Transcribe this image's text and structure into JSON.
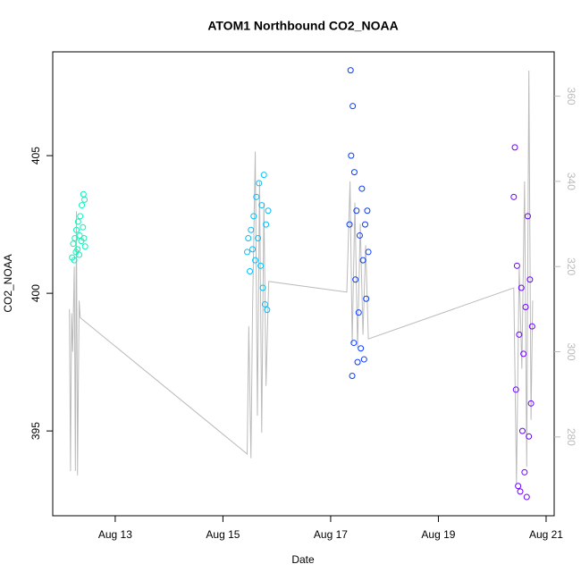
{
  "chart_data": {
    "type": "scatter",
    "title": "ATOM1 Northbound CO2_NOAA",
    "x_label": "Date",
    "y_label": "CO2_NOAA",
    "xlim": [
      11.84,
      21.15
    ],
    "xticks": [
      {
        "value": 13,
        "label": "Aug 13"
      },
      {
        "value": 15,
        "label": "Aug 15"
      },
      {
        "value": 17,
        "label": "Aug 17"
      },
      {
        "value": 19,
        "label": "Aug 19"
      },
      {
        "value": 21,
        "label": "Aug 21"
      }
    ],
    "ylim": [
      391.92,
      408.77
    ],
    "yticks": [
      395,
      400,
      405
    ],
    "y2lim": [
      261.5,
      370.4
    ],
    "y2ticks": [
      280,
      300,
      320,
      340,
      360
    ],
    "series": [
      {
        "color": "#10f0b8",
        "x": [
          12.2,
          12.22,
          12.24,
          12.25,
          12.27,
          12.28,
          12.3,
          12.31,
          12.33,
          12.34,
          12.35,
          12.37,
          12.38,
          12.4,
          12.41,
          12.42,
          12.43,
          12.44
        ],
        "values": [
          401.3,
          401.8,
          401.2,
          402.0,
          401.5,
          402.3,
          401.6,
          402.6,
          401.4,
          402.1,
          402.8,
          401.9,
          403.2,
          402.4,
          403.6,
          402.0,
          403.4,
          401.7
        ]
      },
      {
        "color": "#00bfff",
        "x": [
          15.45,
          15.47,
          15.5,
          15.52,
          15.55,
          15.57,
          15.6,
          15.62,
          15.65,
          15.67,
          15.7,
          15.72,
          15.74,
          15.76,
          15.78,
          15.8,
          15.82,
          15.84
        ],
        "values": [
          401.5,
          402.0,
          400.8,
          402.3,
          401.6,
          402.8,
          401.2,
          403.5,
          402.0,
          404.0,
          401.0,
          403.2,
          400.2,
          404.3,
          399.6,
          402.5,
          399.4,
          403.0
        ]
      },
      {
        "color": "#0a3cff",
        "x": [
          17.35,
          17.37,
          17.38,
          17.4,
          17.41,
          17.43,
          17.44,
          17.46,
          17.48,
          17.5,
          17.52,
          17.54,
          17.56,
          17.58,
          17.6,
          17.62,
          17.64,
          17.66,
          17.68,
          17.7
        ],
        "values": [
          402.5,
          408.1,
          405.0,
          397.0,
          406.8,
          398.2,
          404.4,
          400.5,
          403.0,
          397.5,
          399.3,
          402.1,
          398.0,
          403.8,
          401.2,
          397.6,
          402.5,
          399.8,
          403.0,
          401.5
        ]
      },
      {
        "color": "#6a00ff",
        "x": [
          20.4,
          20.42,
          20.44,
          20.46,
          20.48,
          20.5,
          20.52,
          20.54,
          20.56,
          20.58,
          20.6,
          20.62,
          20.64,
          20.66,
          20.68,
          20.7,
          20.72,
          20.74
        ],
        "values": [
          403.5,
          405.3,
          396.5,
          401.0,
          393.0,
          398.5,
          392.8,
          400.2,
          395.0,
          397.8,
          393.5,
          399.5,
          392.6,
          402.8,
          394.8,
          400.5,
          396.0,
          398.8
        ]
      },
      {
        "color": "#bbbbbb",
        "axis": "y2",
        "line": true,
        "x": [
          12.15,
          12.17,
          12.19,
          12.21,
          12.24,
          12.26,
          12.28,
          12.3,
          12.33,
          12.35,
          15.45,
          15.48,
          15.52,
          15.55,
          15.6,
          15.64,
          15.68,
          15.72,
          15.76,
          15.8,
          15.85,
          17.3,
          17.36,
          17.4,
          17.45,
          17.5,
          17.55,
          17.6,
          17.65,
          17.7,
          20.4,
          20.45,
          20.5,
          20.55,
          20.6,
          20.64,
          20.68,
          20.72,
          20.75
        ],
        "values": [
          310,
          272,
          309,
          300,
          320,
          272,
          333,
          271,
          312,
          308,
          276,
          306,
          275,
          310,
          347,
          285,
          340,
          281,
          335,
          292,
          316.5,
          314,
          340,
          302,
          335,
          301,
          330,
          304,
          325,
          303,
          315,
          269,
          320,
          296,
          340,
          273,
          366,
          284,
          312
        ]
      }
    ]
  }
}
